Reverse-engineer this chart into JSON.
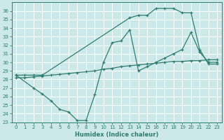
{
  "xlabel": "Humidex (Indice chaleur)",
  "xlim": [
    -0.5,
    23.5
  ],
  "ylim": [
    23,
    37
  ],
  "yticks": [
    23,
    24,
    25,
    26,
    27,
    28,
    29,
    30,
    31,
    32,
    33,
    34,
    35,
    36
  ],
  "xticks": [
    0,
    1,
    2,
    3,
    4,
    5,
    6,
    7,
    8,
    9,
    10,
    11,
    12,
    13,
    14,
    15,
    16,
    17,
    18,
    19,
    20,
    21,
    22,
    23
  ],
  "line_color": "#2e7d6e",
  "bg_color": "#cde8e8",
  "grid_color": "#b8d8d8",
  "line1_x": [
    0,
    1,
    2,
    3,
    13,
    14,
    15,
    16,
    17,
    18,
    19,
    20,
    21,
    22,
    23
  ],
  "line1_y": [
    28.5,
    28.5,
    28.5,
    28.5,
    35.2,
    35.5,
    35.5,
    36.3,
    36.3,
    36.3,
    35.8,
    35.8,
    31.5,
    29.8,
    29.8
  ],
  "line2_x": [
    0,
    2,
    3,
    4,
    5,
    6,
    7,
    8,
    9,
    10,
    11,
    12,
    13,
    14,
    15,
    16,
    17,
    18,
    19,
    20,
    21,
    22,
    23
  ],
  "line2_y": [
    28.5,
    27.0,
    26.3,
    25.5,
    24.5,
    24.2,
    23.2,
    23.2,
    26.2,
    30.0,
    32.3,
    32.5,
    33.8,
    29.0,
    29.5,
    30.0,
    30.5,
    31.0,
    31.5,
    33.5,
    31.2,
    30.0,
    30.0
  ],
  "line3_x": [
    0,
    1,
    2,
    3,
    4,
    5,
    6,
    7,
    8,
    9,
    10,
    11,
    12,
    13,
    14,
    15,
    16,
    17,
    18,
    19,
    20,
    21,
    22,
    23
  ],
  "line3_y": [
    28.2,
    28.2,
    28.3,
    28.4,
    28.5,
    28.6,
    28.7,
    28.8,
    28.9,
    29.0,
    29.2,
    29.3,
    29.5,
    29.6,
    29.7,
    29.8,
    29.9,
    30.0,
    30.1,
    30.1,
    30.2,
    30.2,
    30.3,
    30.3
  ]
}
